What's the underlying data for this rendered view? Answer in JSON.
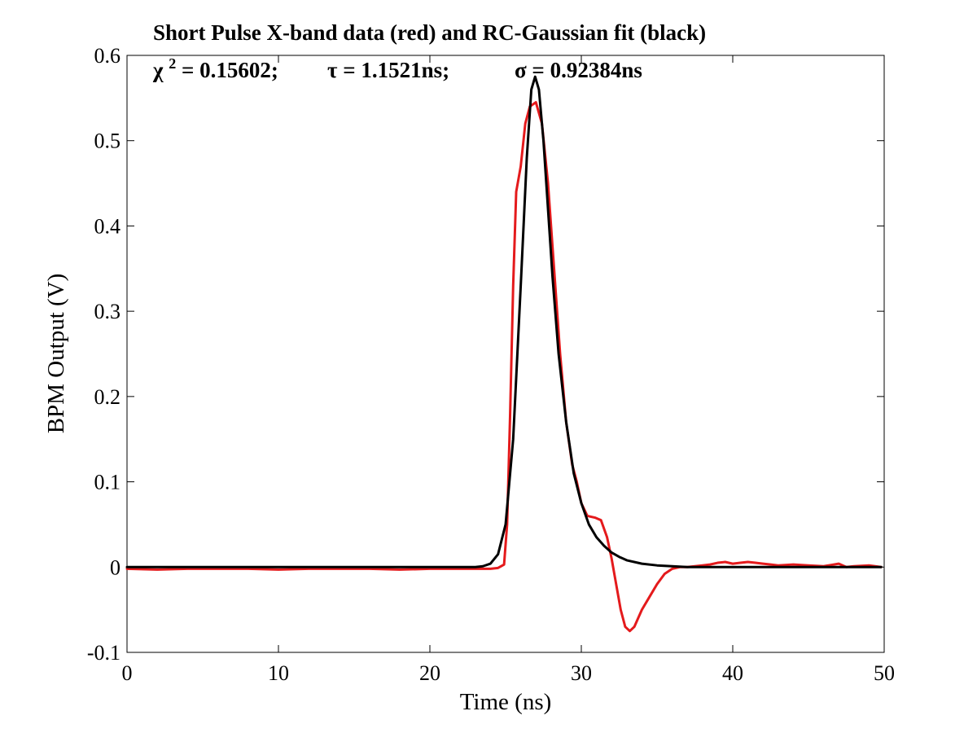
{
  "chart_data": {
    "type": "line",
    "title": "Short Pulse X-band data (red) and RC-Gaussian fit (black)",
    "subtitle": {
      "chi_symbol": "χ",
      "chi_exponent": "2",
      "chi_rest": " = 0.15602;",
      "tau": "τ = 1.1521ns;",
      "sigma": "σ = 0.92384ns"
    },
    "xlabel": "Time (ns)",
    "ylabel": "BPM Output (V)",
    "xlim": [
      0,
      50
    ],
    "ylim": [
      -0.1,
      0.6
    ],
    "x_ticks": [
      0,
      10,
      20,
      30,
      40,
      50
    ],
    "x_tick_labels": [
      "0",
      "10",
      "20",
      "30",
      "40",
      "50"
    ],
    "y_ticks": [
      -0.1,
      0,
      0.1,
      0.2,
      0.3,
      0.4,
      0.5,
      0.6
    ],
    "y_tick_labels": [
      "-0.1",
      "0",
      "0.1",
      "0.2",
      "0.3",
      "0.4",
      "0.5",
      "0.6"
    ],
    "grid": false,
    "series": [
      {
        "color": "#e41a1c",
        "points": [
          [
            0,
            -0.002
          ],
          [
            2,
            -0.003
          ],
          [
            4,
            -0.002
          ],
          [
            6,
            -0.002
          ],
          [
            8,
            -0.002
          ],
          [
            10,
            -0.003
          ],
          [
            12,
            -0.002
          ],
          [
            14,
            -0.002
          ],
          [
            16,
            -0.002
          ],
          [
            18,
            -0.003
          ],
          [
            20,
            -0.002
          ],
          [
            22,
            -0.002
          ],
          [
            23,
            -0.002
          ],
          [
            24,
            -0.002
          ],
          [
            24.5,
            -0.001
          ],
          [
            24.9,
            0.003
          ],
          [
            25.1,
            0.05
          ],
          [
            25.3,
            0.18
          ],
          [
            25.5,
            0.33
          ],
          [
            25.7,
            0.44
          ],
          [
            26.0,
            0.47
          ],
          [
            26.3,
            0.52
          ],
          [
            26.6,
            0.54
          ],
          [
            27.0,
            0.545
          ],
          [
            27.4,
            0.52
          ],
          [
            27.8,
            0.45
          ],
          [
            28.2,
            0.35
          ],
          [
            28.6,
            0.25
          ],
          [
            29.0,
            0.17
          ],
          [
            29.4,
            0.12
          ],
          [
            29.7,
            0.1
          ],
          [
            30.0,
            0.075
          ],
          [
            30.4,
            0.06
          ],
          [
            30.9,
            0.058
          ],
          [
            31.3,
            0.055
          ],
          [
            31.7,
            0.035
          ],
          [
            32.0,
            0.01
          ],
          [
            32.3,
            -0.02
          ],
          [
            32.6,
            -0.05
          ],
          [
            32.9,
            -0.07
          ],
          [
            33.2,
            -0.075
          ],
          [
            33.5,
            -0.07
          ],
          [
            34.0,
            -0.05
          ],
          [
            34.5,
            -0.035
          ],
          [
            35.0,
            -0.02
          ],
          [
            35.5,
            -0.008
          ],
          [
            36.0,
            -0.002
          ],
          [
            36.5,
            0.0
          ],
          [
            37.0,
            0.0
          ],
          [
            37.5,
            0.001
          ],
          [
            38.0,
            0.002
          ],
          [
            38.5,
            0.003
          ],
          [
            39.0,
            0.005
          ],
          [
            39.5,
            0.006
          ],
          [
            40.0,
            0.004
          ],
          [
            40.5,
            0.005
          ],
          [
            41.0,
            0.006
          ],
          [
            41.5,
            0.005
          ],
          [
            42.0,
            0.004
          ],
          [
            42.5,
            0.003
          ],
          [
            43.0,
            0.002
          ],
          [
            44.0,
            0.003
          ],
          [
            45.0,
            0.002
          ],
          [
            46.0,
            0.001
          ],
          [
            47.0,
            0.004
          ],
          [
            47.5,
            0.0
          ],
          [
            48.0,
            0.001
          ],
          [
            49.0,
            0.002
          ],
          [
            49.8,
            0.0
          ]
        ]
      },
      {
        "color": "#000000",
        "points": [
          [
            0,
            0.0
          ],
          [
            10,
            0.0
          ],
          [
            20,
            0.0
          ],
          [
            23,
            0.0
          ],
          [
            23.5,
            0.001
          ],
          [
            24.0,
            0.004
          ],
          [
            24.5,
            0.015
          ],
          [
            25.0,
            0.05
          ],
          [
            25.5,
            0.15
          ],
          [
            26.0,
            0.33
          ],
          [
            26.4,
            0.48
          ],
          [
            26.7,
            0.56
          ],
          [
            26.95,
            0.575
          ],
          [
            27.2,
            0.56
          ],
          [
            27.5,
            0.5
          ],
          [
            27.8,
            0.42
          ],
          [
            28.1,
            0.34
          ],
          [
            28.5,
            0.25
          ],
          [
            29.0,
            0.17
          ],
          [
            29.5,
            0.11
          ],
          [
            30.0,
            0.075
          ],
          [
            30.5,
            0.05
          ],
          [
            31.0,
            0.035
          ],
          [
            31.5,
            0.025
          ],
          [
            32.0,
            0.017
          ],
          [
            32.5,
            0.012
          ],
          [
            33.0,
            0.008
          ],
          [
            34.0,
            0.004
          ],
          [
            35.0,
            0.002
          ],
          [
            36.0,
            0.001
          ],
          [
            37.0,
            0.0
          ],
          [
            40.0,
            0.0
          ],
          [
            45.0,
            0.0
          ],
          [
            49.8,
            0.0
          ]
        ]
      }
    ]
  }
}
